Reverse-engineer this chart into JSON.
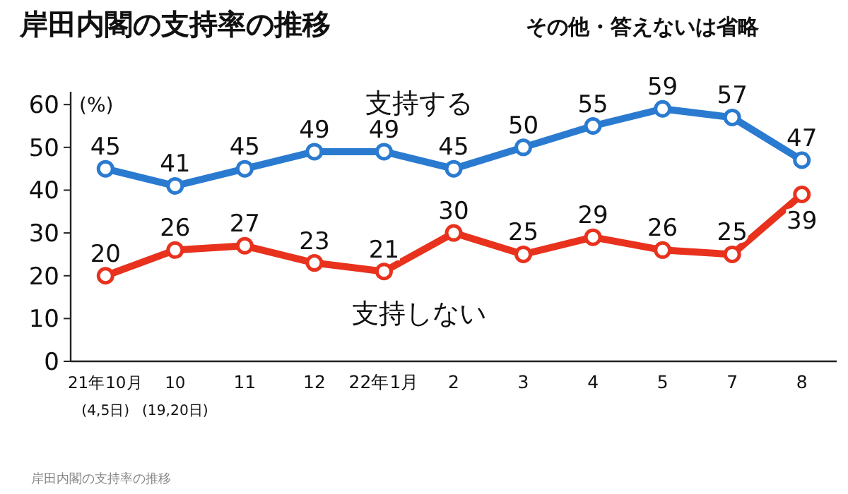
{
  "chart_data": {
    "type": "line",
    "title": "岸田内閣の支持率の推移",
    "subtitle": "その他・答えないは省略",
    "ylabel": "(%)",
    "categories": [
      "21年10月\n(4,5日)",
      "10\n(19,20日)",
      "11",
      "12",
      "22年1月",
      "2",
      "3",
      "4",
      "5",
      "7",
      "8"
    ],
    "series": [
      {
        "name": "支持する",
        "color": "#2a7bd0",
        "values": [
          45,
          41,
          45,
          49,
          49,
          45,
          50,
          55,
          59,
          57,
          47
        ]
      },
      {
        "name": "支持しない",
        "color": "#e8321e",
        "values": [
          20,
          26,
          27,
          23,
          21,
          30,
          25,
          29,
          26,
          25,
          39
        ]
      }
    ],
    "ylim": [
      0,
      63
    ],
    "yticks": [
      0,
      10,
      20,
      30,
      40,
      50,
      60
    ],
    "marker": "circle",
    "line_style": "solid",
    "data_labels": true,
    "annotations": [
      "岸田内閣の支持率の推移"
    ]
  }
}
